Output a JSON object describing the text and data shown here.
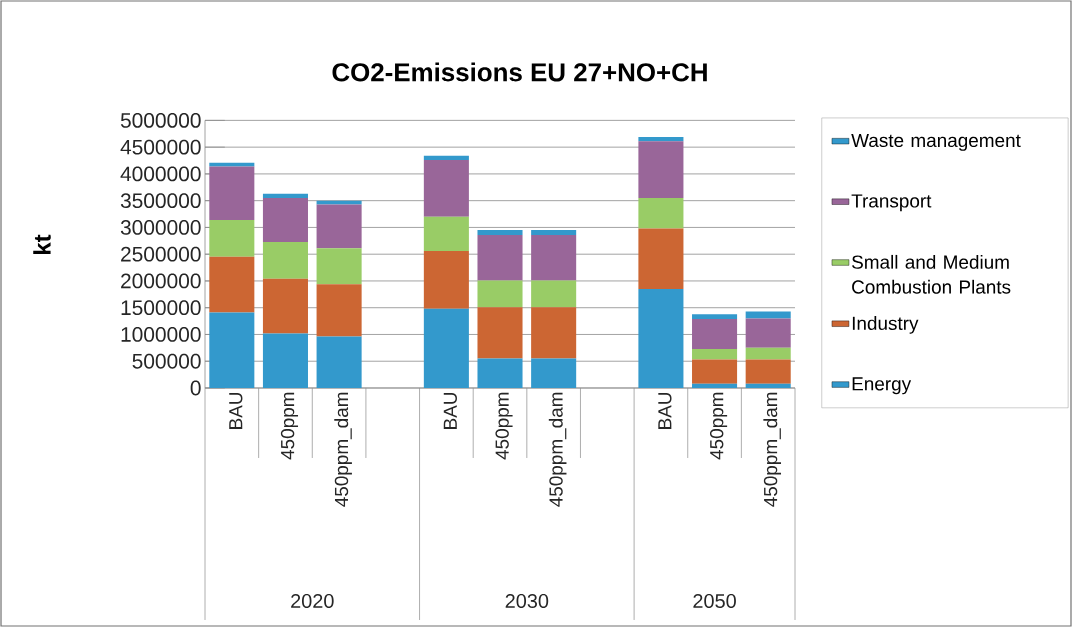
{
  "chart_data": {
    "type": "bar",
    "title": "CO2-Emissions EU 27+NO+CH",
    "ylabel": "kt",
    "categories": [
      "BAU",
      "450ppm",
      "450ppm_dam",
      null,
      "BAU",
      "450ppm",
      "450ppm_dam",
      null,
      "BAU",
      "450ppm",
      "450ppm_dam"
    ],
    "stacked": true,
    "series": [
      {
        "name": "Energy",
        "color": "#3399cc",
        "values": [
          1410000,
          1020000,
          960000,
          null,
          1480000,
          550000,
          550000,
          null,
          1850000,
          80000,
          80000
        ]
      },
      {
        "name": "Industry",
        "color": "#cc6633",
        "values": [
          1040000,
          1020000,
          980000,
          null,
          1080000,
          960000,
          960000,
          null,
          1130000,
          450000,
          450000
        ]
      },
      {
        "name": "Small and Medium Combustion Plants",
        "color": "#99cc66",
        "values": [
          690000,
          690000,
          670000,
          null,
          640000,
          500000,
          500000,
          null,
          570000,
          200000,
          220000
        ]
      },
      {
        "name": "Transport",
        "color": "#996699",
        "values": [
          1000000,
          820000,
          820000,
          null,
          1060000,
          850000,
          850000,
          null,
          1060000,
          560000,
          550000
        ]
      },
      {
        "name": "Waste management",
        "color": "#3399cc",
        "values": [
          70000,
          80000,
          70000,
          null,
          80000,
          90000,
          90000,
          null,
          80000,
          90000,
          130000
        ]
      }
    ],
    "ylim": [
      0,
      5000000
    ],
    "yticks": [
      0,
      500000,
      1000000,
      1500000,
      2000000,
      2500000,
      3000000,
      3500000,
      4000000,
      4500000,
      5000000
    ],
    "grid": "y",
    "legend": "right",
    "annotations": [
      "2020",
      "2030",
      "2050"
    ]
  }
}
